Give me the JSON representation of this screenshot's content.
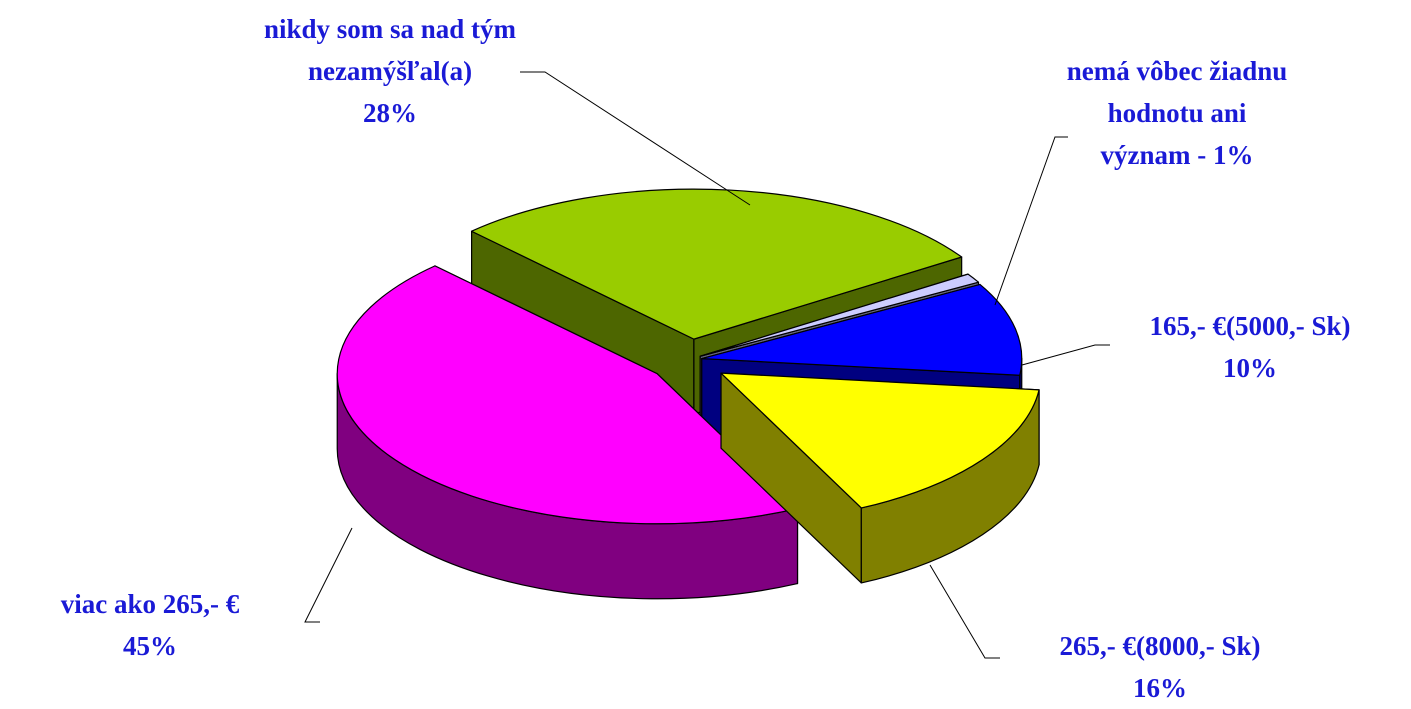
{
  "chart_data": {
    "type": "pie",
    "style": "3d-exploded",
    "categories": [
      "nikdy som sa nad tým nezamýšľal(a)",
      "nemá vôbec žiadnu hodnotu ani význam -",
      "165,- €(5000,- Sk)",
      "265,- €(8000,- Sk)",
      "viac ako 265,- €"
    ],
    "values": [
      28,
      1,
      10,
      16,
      45
    ],
    "value_labels": [
      "28%",
      "1%",
      "10%",
      "16%",
      "45%"
    ],
    "colors": [
      "#99cc00",
      "#ccccff",
      "#0000ff",
      "#ffff00",
      "#ff00ff"
    ]
  }
}
